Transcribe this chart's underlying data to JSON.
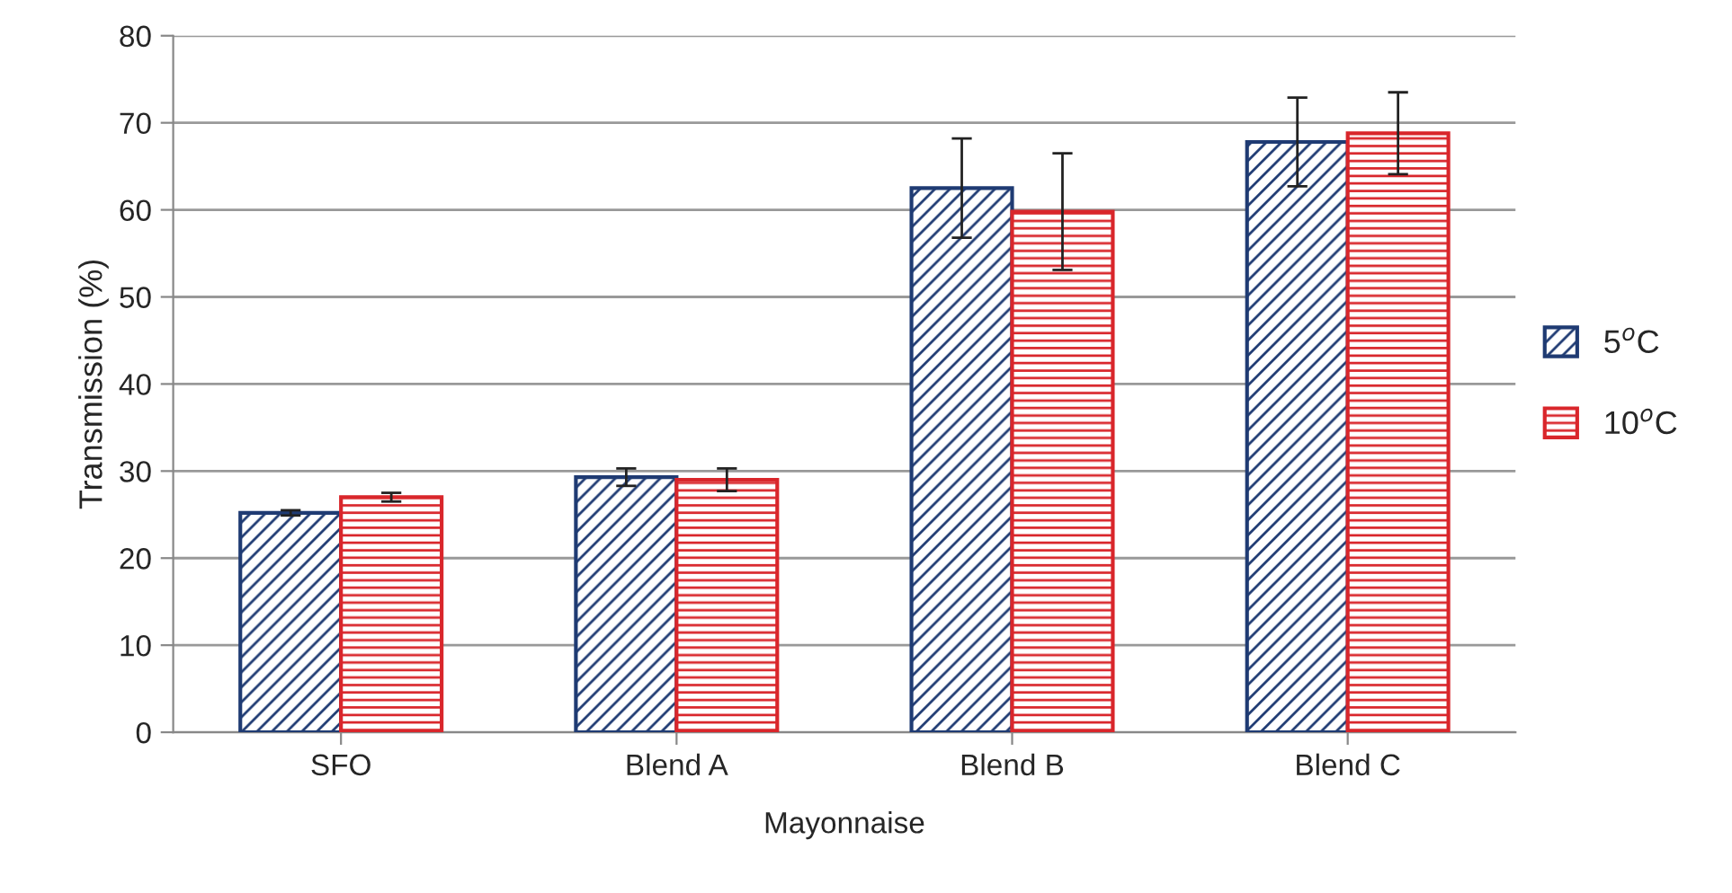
{
  "chart_data": {
    "type": "bar",
    "xlabel": "Mayonnaise",
    "ylabel": "Transmission (%)",
    "categories": [
      "SFO",
      "Blend A",
      "Blend B",
      "Blend C"
    ],
    "series": [
      {
        "name": "5$^{o}$C",
        "color": "#1f3b73",
        "values": [
          25.2,
          29.3,
          62.5,
          67.8
        ],
        "errors": [
          0.3,
          1.0,
          5.7,
          5.1
        ]
      },
      {
        "name": "10$^{o}$C",
        "color": "#d9262b",
        "values": [
          27.0,
          29.0,
          59.8,
          68.8
        ],
        "errors": [
          0.5,
          1.3,
          6.7,
          4.7
        ]
      }
    ],
    "ylim": [
      0,
      80
    ],
    "yticks": [
      0,
      10,
      20,
      30,
      40,
      50,
      60,
      70,
      80
    ],
    "grid": "y",
    "legend": "right"
  }
}
